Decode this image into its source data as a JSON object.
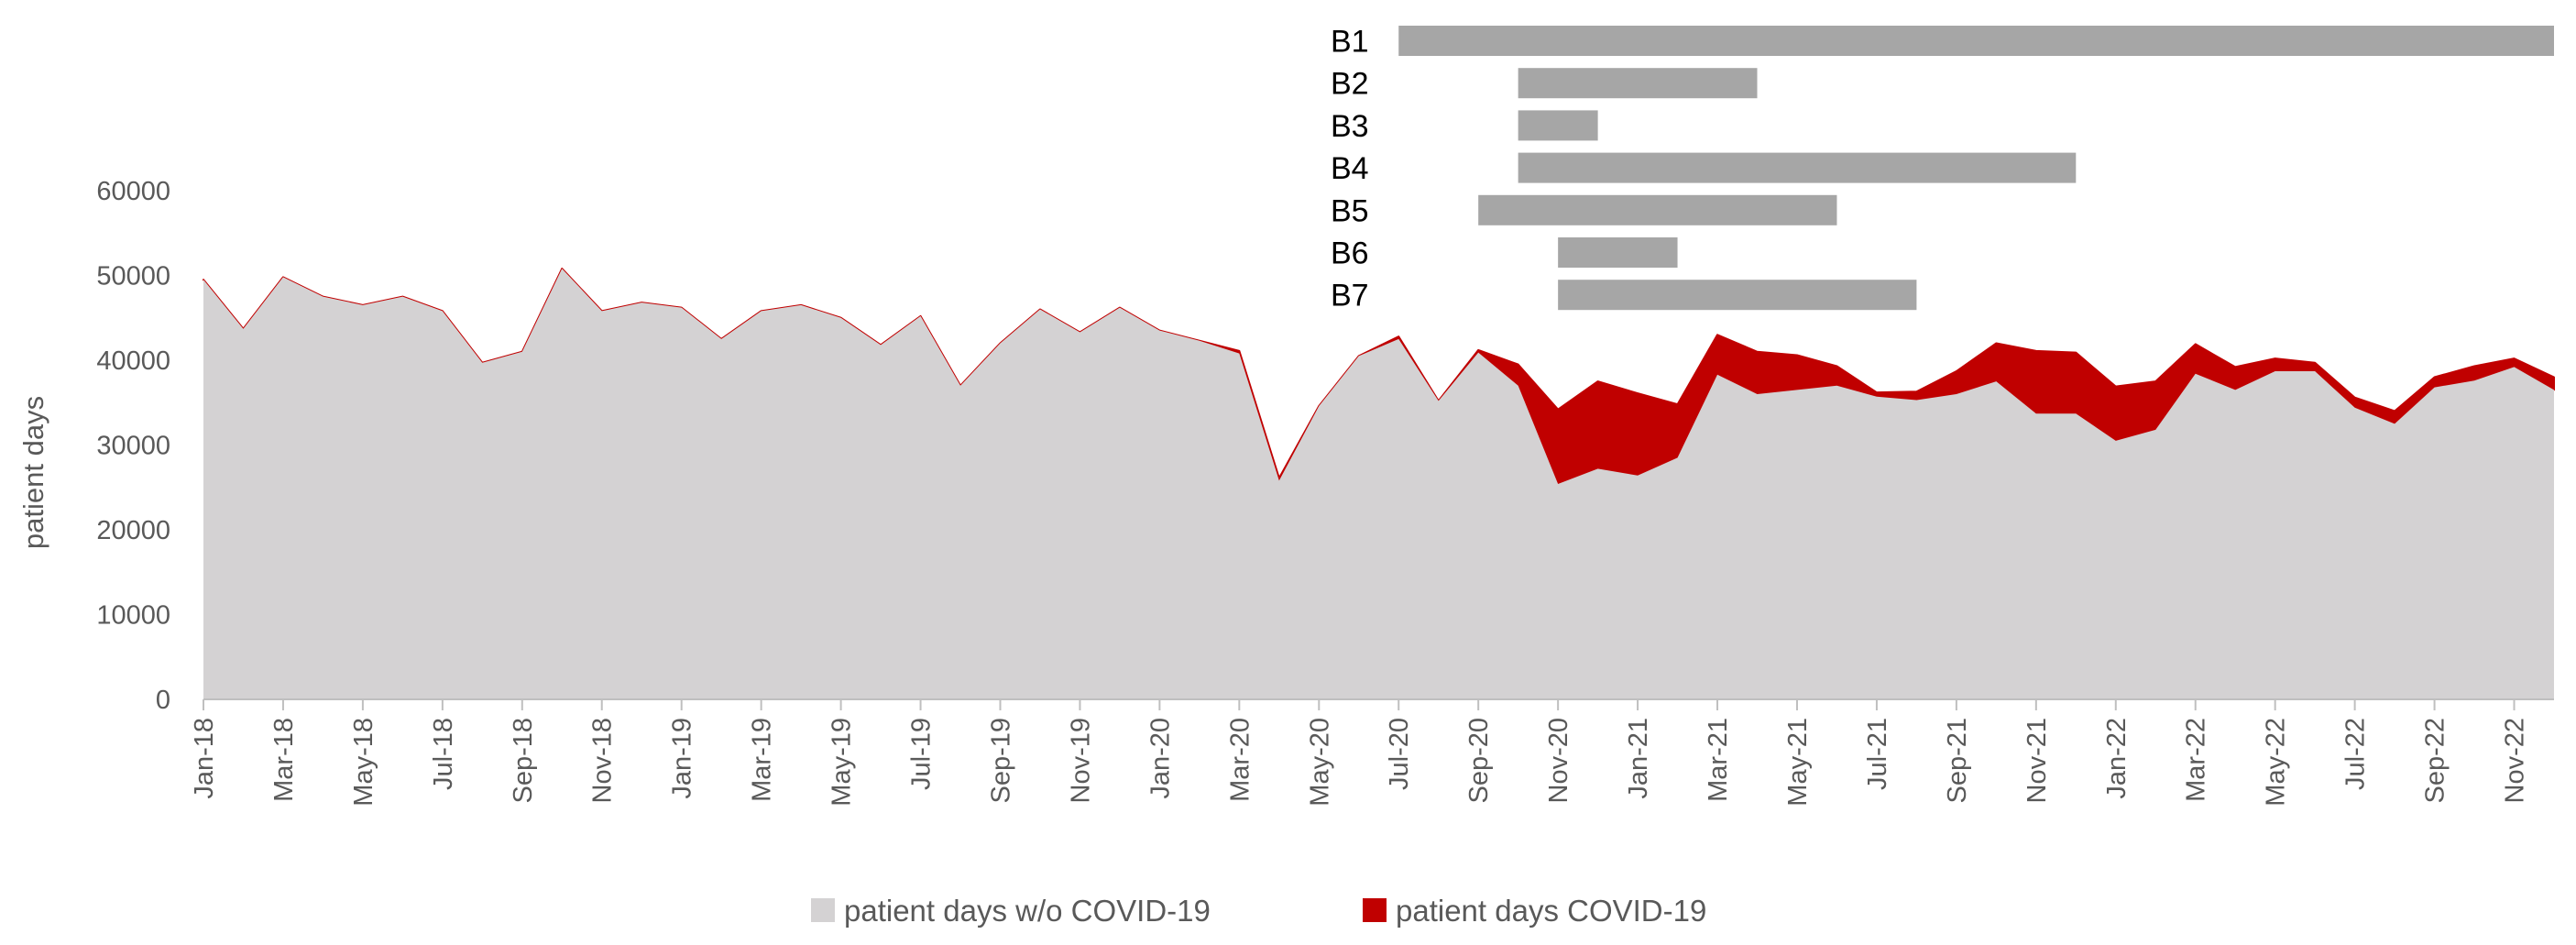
{
  "chart_data": {
    "type": "area",
    "stacked": true,
    "xlabel": "",
    "ylabel": "patient days",
    "ylim": [
      0,
      60000
    ],
    "yticks": [
      "0",
      "10000",
      "20000",
      "30000",
      "40000",
      "50000",
      "60000"
    ],
    "grid": false,
    "legend_position": "bottom",
    "categories": [
      "Jan-18",
      "Feb-18",
      "Mar-18",
      "Apr-18",
      "May-18",
      "Jun-18",
      "Jul-18",
      "Aug-18",
      "Sep-18",
      "Oct-18",
      "Nov-18",
      "Dec-18",
      "Jan-19",
      "Feb-19",
      "Mar-19",
      "Apr-19",
      "May-19",
      "Jun-19",
      "Jul-19",
      "Aug-19",
      "Sep-19",
      "Oct-19",
      "Nov-19",
      "Dec-19",
      "Jan-20",
      "Feb-20",
      "Mar-20",
      "Apr-20",
      "May-20",
      "Jun-20",
      "Jul-20",
      "Aug-20",
      "Sep-20",
      "Oct-20",
      "Nov-20",
      "Dec-20",
      "Jan-21",
      "Feb-21",
      "Mar-21",
      "Apr-21",
      "May-21",
      "Jun-21",
      "Jul-21",
      "Aug-21",
      "Sep-21",
      "Oct-21",
      "Nov-21",
      "Dec-21",
      "Jan-22",
      "Feb-22",
      "Mar-22",
      "Apr-22",
      "May-22",
      "Jun-22",
      "Jul-22",
      "Aug-22",
      "Sep-22",
      "Oct-22",
      "Nov-22",
      "Dec-22"
    ],
    "tick_labels": [
      "Jan-18",
      "Mar-18",
      "May-18",
      "Jul-18",
      "Sep-18",
      "Nov-18",
      "Jan-19",
      "Mar-19",
      "May-19",
      "Jul-19",
      "Sep-19",
      "Nov-19",
      "Jan-20",
      "Mar-20",
      "May-20",
      "Jul-20",
      "Sep-20",
      "Nov-20",
      "Jan-21",
      "Mar-21",
      "May-21",
      "Jul-21",
      "Sep-21",
      "Nov-21",
      "Jan-22",
      "Mar-22",
      "May-22",
      "Jul-22",
      "Sep-22",
      "Nov-22"
    ],
    "series": [
      {
        "name": "patient days w/o COVID-19",
        "color": "#d4d2d3",
        "values": [
          49500,
          43700,
          49800,
          47500,
          46500,
          47500,
          45800,
          39700,
          41000,
          50800,
          45800,
          46800,
          46200,
          42500,
          45800,
          46500,
          45000,
          41800,
          45200,
          37000,
          42000,
          46000,
          43300,
          46200,
          43500,
          42300,
          40800,
          25800,
          34600,
          40500,
          42500,
          35200,
          40900,
          37000,
          25400,
          27200,
          26400,
          28500,
          38300,
          36000,
          36500,
          37000,
          35700,
          35300,
          36000,
          37500,
          33700,
          33700,
          30500,
          31800,
          38400,
          36500,
          38700,
          38700,
          34400,
          32500,
          36800,
          37600,
          39200,
          36500
        ]
      },
      {
        "name": "patient days COVID-19",
        "color": "#c00000",
        "values": [
          0,
          0,
          0,
          0,
          0,
          0,
          0,
          0,
          0,
          0,
          0,
          0,
          0,
          0,
          0,
          0,
          0,
          0,
          0,
          0,
          0,
          0,
          0,
          0,
          0,
          0,
          300,
          300,
          0,
          0,
          300,
          0,
          300,
          2500,
          8800,
          10300,
          9700,
          6300,
          4700,
          5000,
          4100,
          2300,
          500,
          1000,
          2700,
          4500,
          7400,
          7200,
          6400,
          5700,
          3500,
          2700,
          1500,
          1000,
          1200,
          1500,
          1200,
          1700,
          1000,
          1500
        ]
      }
    ],
    "bars": [
      {
        "label": "B1",
        "start": "Jul-20",
        "end": "Dec-22",
        "color": "#a6a6a6"
      },
      {
        "label": "B2",
        "start": "Oct-20",
        "end": "Apr-21",
        "color": "#a6a6a6"
      },
      {
        "label": "B3",
        "start": "Oct-20",
        "end": "Dec-20",
        "color": "#a6a6a6"
      },
      {
        "label": "B4",
        "start": "Oct-20",
        "end": "Dec-21",
        "color": "#a6a6a6"
      },
      {
        "label": "B5",
        "start": "Sep-20",
        "end": "Jun-21",
        "color": "#a6a6a6"
      },
      {
        "label": "B6",
        "start": "Nov-20",
        "end": "Feb-21",
        "color": "#a6a6a6"
      },
      {
        "label": "B7",
        "start": "Nov-20",
        "end": "Aug-21",
        "color": "#a6a6a6"
      }
    ],
    "axis_color": "#bfbfbf",
    "text_color": "#595959"
  }
}
